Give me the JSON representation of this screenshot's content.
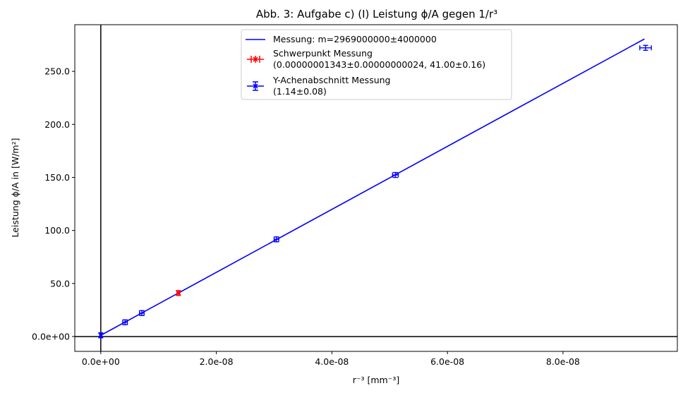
{
  "chart_data": {
    "type": "scatter",
    "title": "Abb. 3: Aufgabe c) (I) Leistung ϕ/A gegen 1/r³",
    "xlabel": "r⁻³ [mm⁻³]",
    "ylabel": "Leistung ϕ/A in [W/m²]",
    "xlim": [
      -4.5e-09,
      9.98e-08
    ],
    "ylim": [
      -14,
      294
    ],
    "x_ticks": [
      0,
      2e-08,
      4e-08,
      6e-08,
      8e-08
    ],
    "x_tick_labels": [
      "0.0e+00",
      "2.0e-08",
      "4.0e-08",
      "6.0e-08",
      "8.0e-08"
    ],
    "y_ticks": [
      0,
      50,
      100,
      150,
      200,
      250
    ],
    "y_tick_labels": [
      "0.0e+00",
      "50.0",
      "100.0",
      "150.0",
      "200.0",
      "250.0"
    ],
    "reference_lines": {
      "x": 0,
      "y": 0
    },
    "grid": false,
    "legend_position": "upper center",
    "colors": {
      "fit": "#0000ff",
      "data": "#0000ff",
      "centroid": "#ff0000",
      "reference": "#000000"
    },
    "fit_line": {
      "name": "Messung: m=2969000000±4000000",
      "slope": 2969000000,
      "intercept": 1.14,
      "x_range": [
        0,
        9.41e-08
      ]
    },
    "series": [
      {
        "style": "errorbar",
        "points": [
          {
            "x": 4.2e-09,
            "y": 13.4,
            "xerr": 4e-10,
            "yerr": 0.4
          },
          {
            "x": 7.1e-09,
            "y": 22.1,
            "xerr": 4e-10,
            "yerr": 0.5
          },
          {
            "x": 3.04e-08,
            "y": 91.6,
            "xerr": 4e-10,
            "yerr": 0.6
          },
          {
            "x": 5.1e-08,
            "y": 152.3,
            "xerr": 5e-10,
            "yerr": 0.8
          },
          {
            "x": 9.43e-08,
            "y": 272.2,
            "xerr": 1e-09,
            "yerr": 1.0
          }
        ]
      },
      {
        "name": "Schwerpunkt Messung",
        "label_line2": "(0.00000001343±0.00000000024, 41.00±0.16)",
        "style": "errorbar-marker-x",
        "points": [
          {
            "x": 1.343e-08,
            "y": 41.0,
            "xerr": 2.4e-10,
            "yerr": 0.16
          }
        ]
      },
      {
        "name": "Y-Achenabschnitt Messung",
        "label_line2": "(1.14±0.08)",
        "style": "errorbar-marker-x",
        "points": [
          {
            "x": 0,
            "y": 1.14,
            "xerr": 0,
            "yerr": 0.08
          }
        ]
      }
    ]
  }
}
